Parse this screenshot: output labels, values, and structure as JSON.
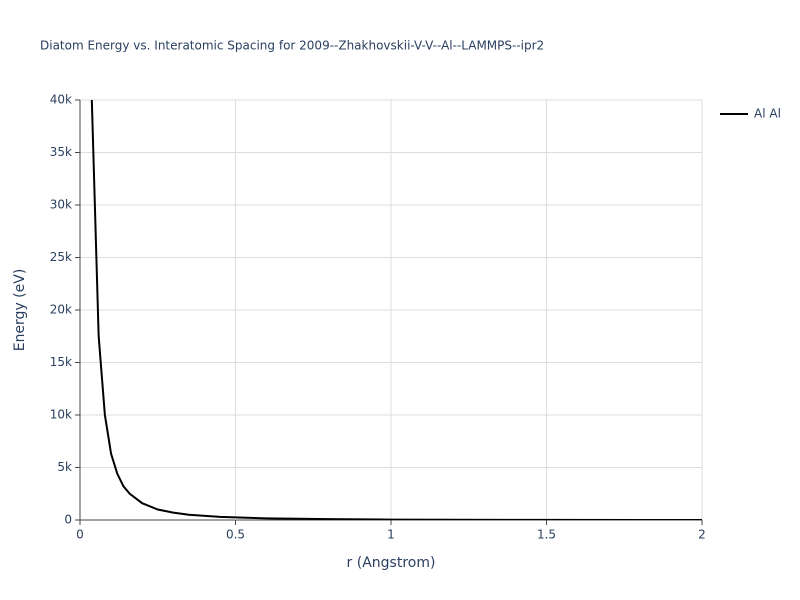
{
  "chart_data": {
    "type": "line",
    "title": "Diatom Energy vs. Interatomic Spacing for 2009--Zhakhovskii-V-V--Al--LAMMPS--ipr2",
    "x_label": "r (Angstrom)",
    "y_label": "Energy (eV)",
    "x": [
      0.038,
      0.06,
      0.08,
      0.1,
      0.12,
      0.14,
      0.16,
      0.2,
      0.25,
      0.3,
      0.35,
      0.45,
      0.6,
      0.8,
      1,
      1.5,
      2
    ],
    "series": [
      {
        "name": "Al Al",
        "color": "#000000",
        "values": [
          40000,
          17500,
          10000,
          6300,
          4400,
          3200,
          2500,
          1600,
          1000,
          700,
          500,
          300,
          150,
          80,
          40,
          10,
          0
        ]
      }
    ],
    "xlim": [
      0,
      2
    ],
    "ylim": [
      0,
      40000
    ],
    "xticks": [
      0,
      0.5,
      1,
      1.5,
      2
    ],
    "yticks": [
      0,
      {
        "value": 5000,
        "label": "5k"
      },
      {
        "value": 10000,
        "label": "10k"
      },
      {
        "value": 15000,
        "label": "15k"
      },
      {
        "value": 20000,
        "label": "20k"
      },
      {
        "value": 25000,
        "label": "25k"
      },
      {
        "value": 30000,
        "label": "30k"
      },
      {
        "value": 35000,
        "label": "35k"
      },
      {
        "value": 40000,
        "label": "40k"
      }
    ],
    "grid": true,
    "legend": "right"
  }
}
